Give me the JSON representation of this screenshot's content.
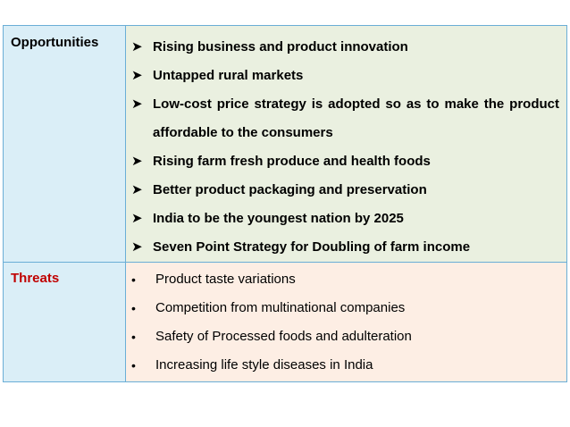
{
  "table": {
    "opportunities": {
      "label": "Opportunities",
      "items": [
        "Rising business and product innovation",
        "Untapped rural markets",
        "Low-cost price strategy is adopted so as to make the product affordable to the consumers",
        "Rising farm fresh produce and health foods",
        "Better product packaging and preservation",
        "India to be the youngest nation by 2025",
        "Seven Point Strategy for Doubling of farm income"
      ]
    },
    "threats": {
      "label": "Threats",
      "items": [
        "Product taste variations",
        "Competition from multinational companies",
        "Safety of Processed foods and adulteration",
        "Increasing life style diseases in India"
      ]
    }
  },
  "colors": {
    "label_background": "#daeef7",
    "opportunities_background": "#eaf0e0",
    "threats_background": "#fdeee4",
    "threats_label": "#c00000",
    "border": "#6aaed6"
  }
}
